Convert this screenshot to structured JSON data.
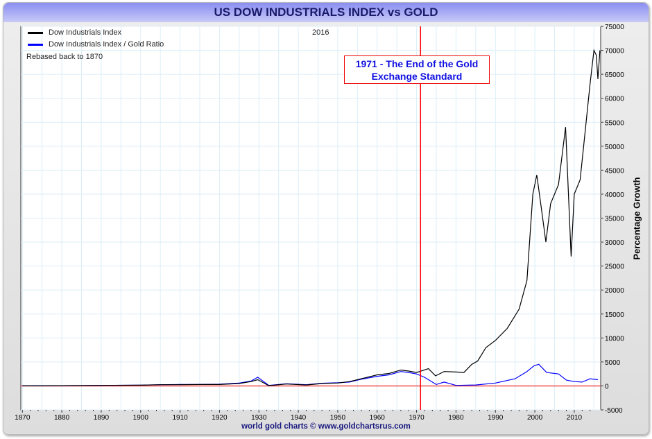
{
  "chart_data": {
    "type": "line",
    "title": "US DOW INDUSTRIALS INDEX vs GOLD",
    "ylabel": "Percentage Growth",
    "xlabel": "",
    "xlim": [
      1869.6,
      2016.7
    ],
    "ylim": [
      -5000,
      75000
    ],
    "xticks": [
      1870,
      1880,
      1890,
      1900,
      1910,
      1920,
      1930,
      1940,
      1950,
      1960,
      1970,
      1980,
      1990,
      2000,
      2010
    ],
    "yticks": [
      -5000,
      0,
      5000,
      10000,
      15000,
      20000,
      25000,
      30000,
      35000,
      40000,
      45000,
      50000,
      55000,
      60000,
      65000,
      70000,
      75000
    ],
    "grid": true,
    "legend_placement": "top-left",
    "year_label": "2016",
    "note": "Rebased back to 1870",
    "annotation": {
      "line1": "1971 - The End of the Gold",
      "line2": "Exchange Standard",
      "x": 1971
    },
    "series": [
      {
        "name": "Dow Industrials Index",
        "color": "#000000",
        "x": [
          1870,
          1880,
          1890,
          1900,
          1905,
          1910,
          1915,
          1920,
          1925,
          1928,
          1929.7,
          1932.5,
          1937,
          1942,
          1946,
          1950,
          1953,
          1956,
          1960,
          1963,
          1966,
          1968,
          1970,
          1973,
          1974.8,
          1977,
          1980,
          1982,
          1984,
          1985.5,
          1987.6,
          1990,
          1993,
          1996,
          1998,
          1999.5,
          2000.5,
          2001.5,
          2002.8,
          2004,
          2006,
          2007.8,
          2009.2,
          2010,
          2011.5,
          2013,
          2014,
          2015,
          2015.6,
          2016,
          2016.5
        ],
        "values": [
          0,
          50,
          100,
          150,
          250,
          250,
          300,
          300,
          500,
          900,
          1300,
          50,
          400,
          200,
          500,
          600,
          900,
          1500,
          2300,
          2600,
          3300,
          3100,
          2800,
          3600,
          2100,
          3000,
          2900,
          2800,
          4500,
          5200,
          8000,
          9500,
          12000,
          16000,
          22000,
          40000,
          44000,
          38000,
          30000,
          38000,
          42000,
          54000,
          27000,
          40000,
          43000,
          55000,
          63000,
          70000,
          69000,
          64000,
          70000
        ]
      },
      {
        "name": "Dow Industrials Index / Gold Ratio",
        "color": "#0000ff",
        "x": [
          1870,
          1880,
          1890,
          1900,
          1905,
          1910,
          1915,
          1920,
          1925,
          1928,
          1929.7,
          1932.5,
          1937,
          1942,
          1946,
          1950,
          1953,
          1956,
          1960,
          1963,
          1966,
          1968,
          1970,
          1972,
          1975,
          1977,
          1980,
          1985,
          1990,
          1995,
          1998,
          1999.8,
          2001,
          2003,
          2006,
          2008,
          2010,
          2012,
          2014,
          2016
        ],
        "values": [
          0,
          50,
          100,
          150,
          250,
          300,
          300,
          350,
          600,
          1000,
          1800,
          100,
          450,
          250,
          550,
          650,
          800,
          1400,
          2000,
          2300,
          3000,
          2800,
          2500,
          1800,
          300,
          800,
          100,
          200,
          600,
          1500,
          3000,
          4200,
          4500,
          2800,
          2500,
          1200,
          900,
          800,
          1500,
          1300
        ]
      }
    ]
  },
  "footer": "world gold charts © www.goldchartsrus.com"
}
